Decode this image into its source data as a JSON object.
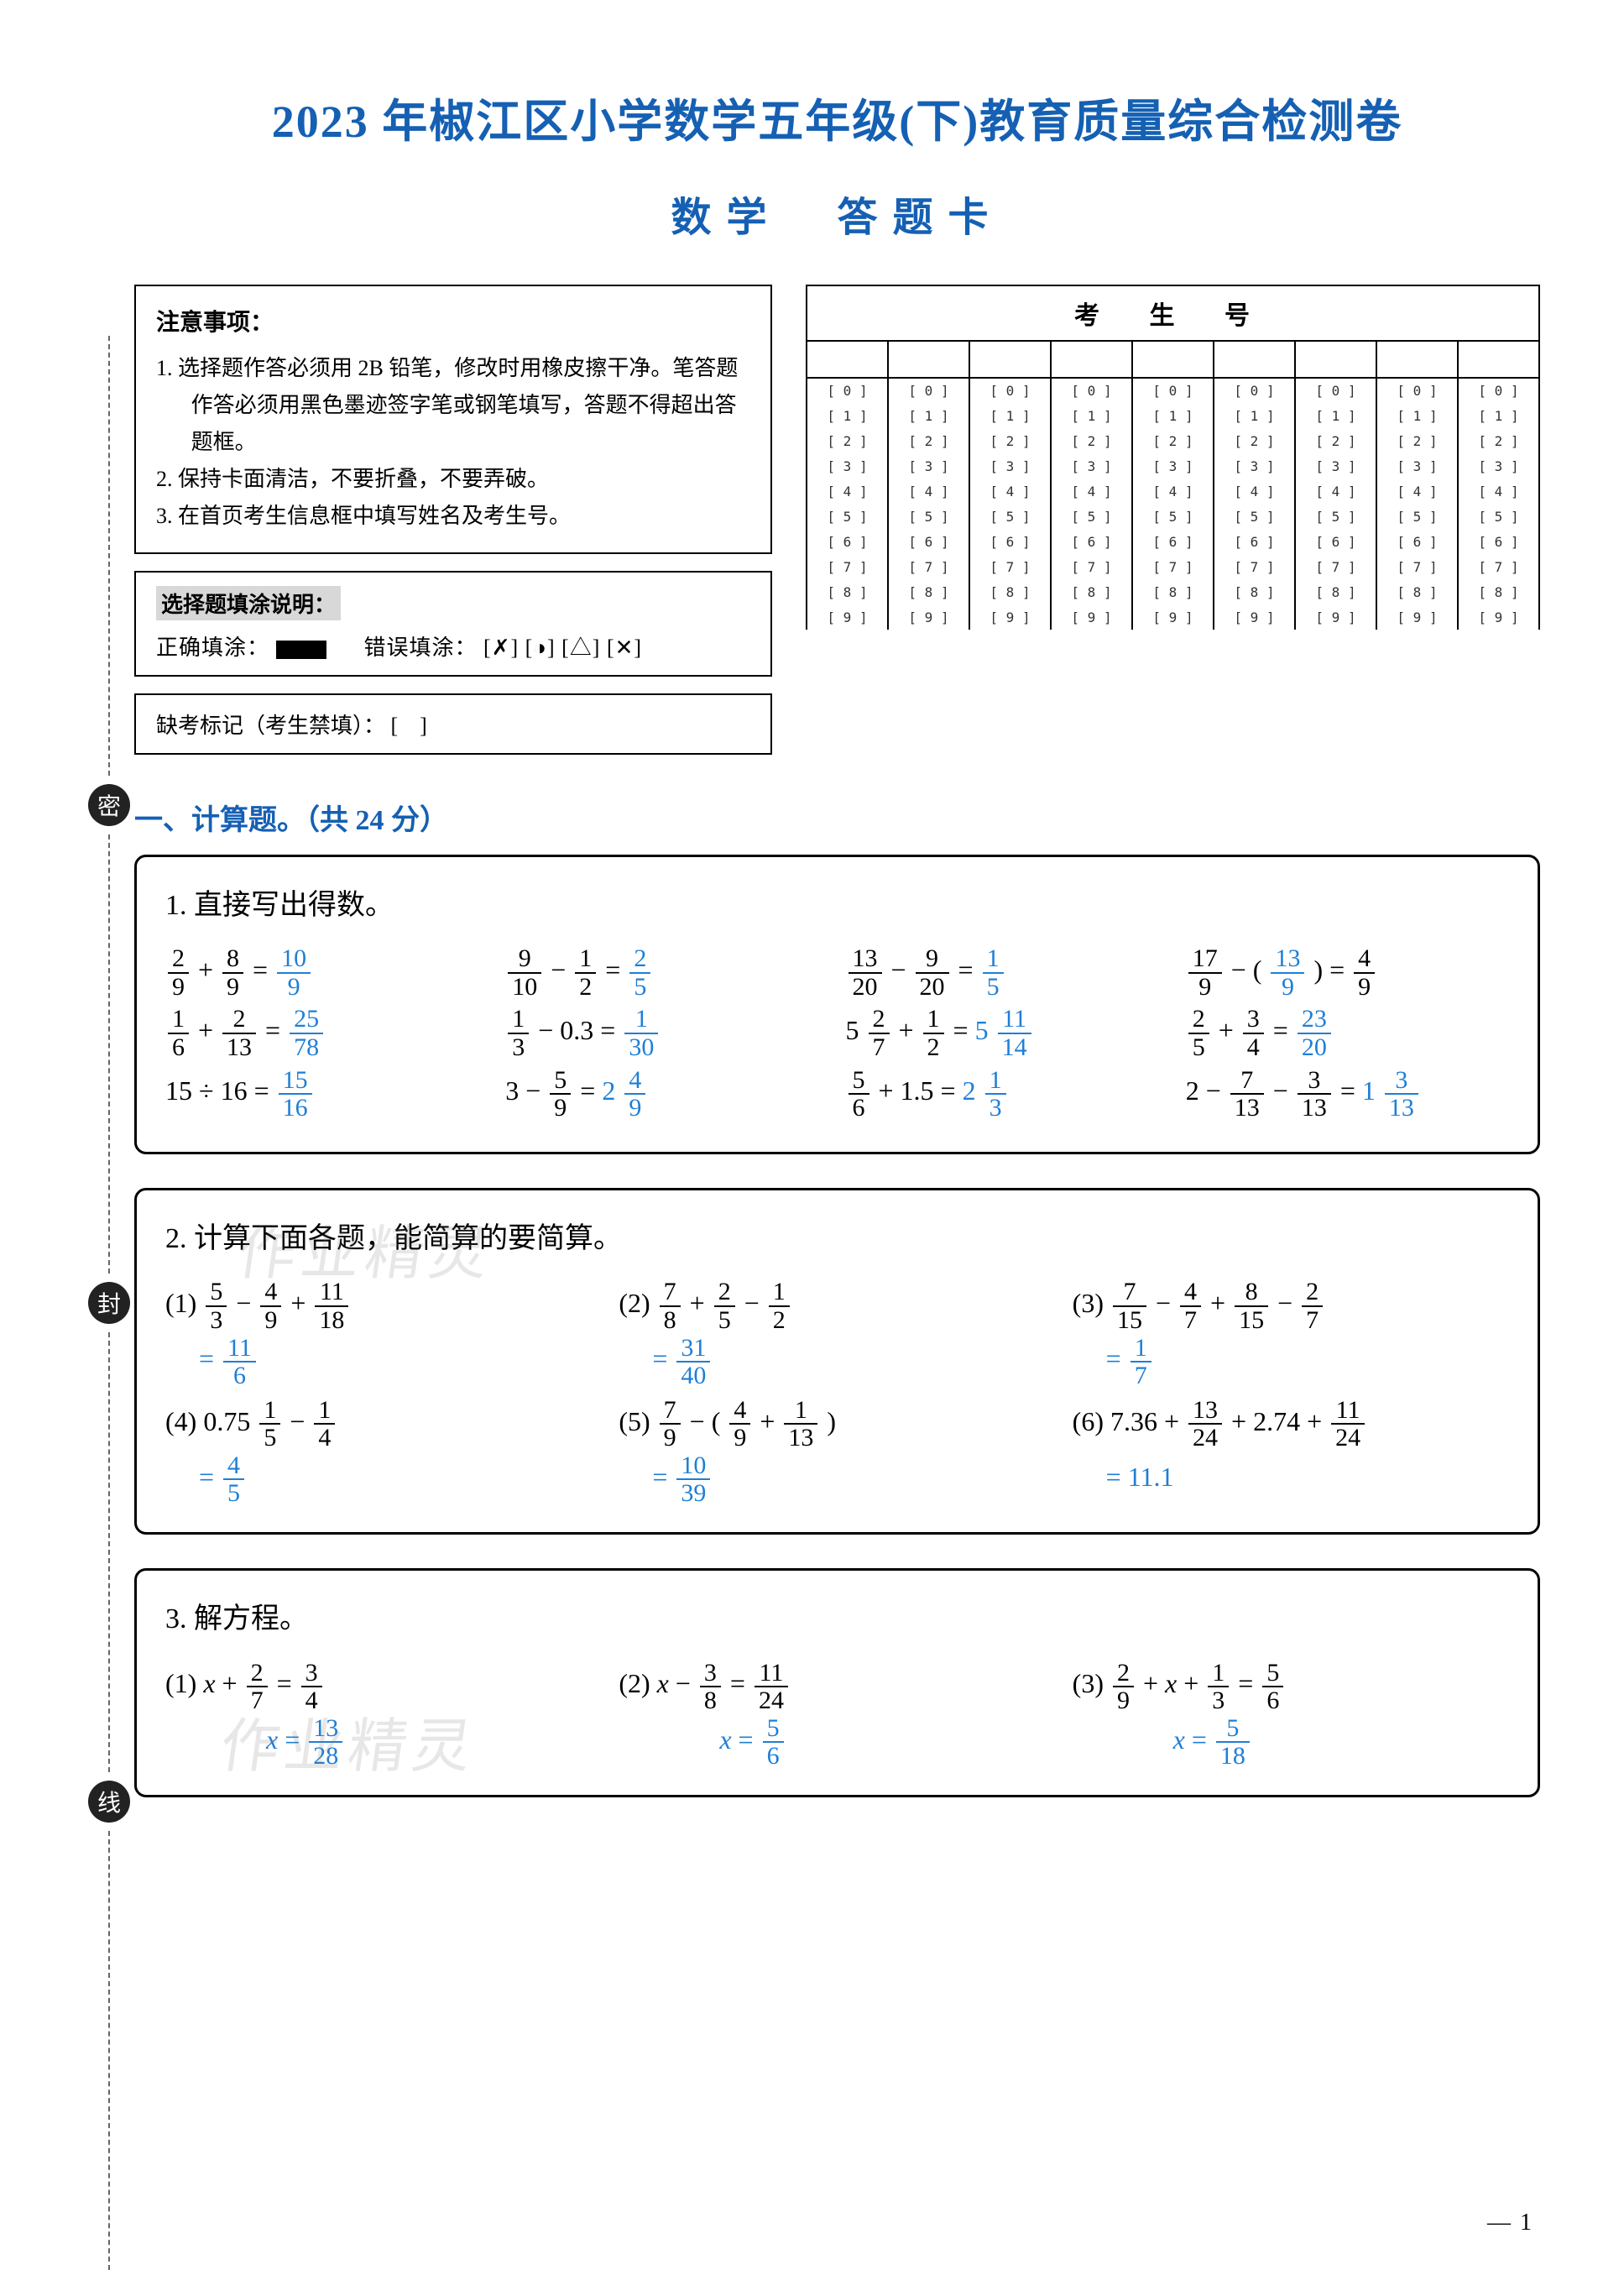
{
  "colors": {
    "heading_blue": "#1560b3",
    "answer_blue": "#1e7fd6",
    "text_black": "#000000",
    "border_black": "#000000",
    "page_bg": "#ffffff"
  },
  "title_main": "2023 年椒江区小学数学五年级(下)教育质量综合检测卷",
  "title_sub": "数学　答题卡",
  "notice": {
    "heading": "注意事项：",
    "items": [
      "1. 选择题作答必须用 2B 铅笔，修改时用橡皮擦干净。笔答题作答必须用黑色墨迹签字笔或钢笔填写，答题不得超出答题框。",
      "2. 保持卡面清洁，不要折叠，不要弄破。",
      "3. 在首页考生信息框中填写姓名及考生号。"
    ]
  },
  "fillguide": {
    "heading": "选择题填涂说明：",
    "correct_label": "正确填涂：",
    "wrong_label": "错误填涂：",
    "wrong_examples": "[✗] [◑] [△] [✕]"
  },
  "absent": {
    "label": "缺考标记（考生禁填）：",
    "box": "[　]"
  },
  "ksh": {
    "header": "考 生 号",
    "columns": 9,
    "digits": [
      "0",
      "1",
      "2",
      "3",
      "4",
      "5",
      "6",
      "7",
      "8",
      "9"
    ]
  },
  "fold_labels": [
    "密",
    "封",
    "线"
  ],
  "section1": {
    "heading": "一、计算题。",
    "points_label": "（共 24 分）"
  },
  "q1": {
    "title": "1.  直接写出得数。",
    "rows": [
      [
        {
          "lhs_a": "2",
          "lhs_b": "9",
          "op": "+",
          "rhs_a": "8",
          "rhs_b": "9",
          "ans_a": "10",
          "ans_b": "9",
          "type": "ff"
        },
        {
          "lhs_a": "9",
          "lhs_b": "10",
          "op": "−",
          "rhs_a": "1",
          "rhs_b": "2",
          "ans_a": "2",
          "ans_b": "5",
          "type": "ff"
        },
        {
          "lhs_a": "13",
          "lhs_b": "20",
          "op": "−",
          "rhs_a": "9",
          "rhs_b": "20",
          "ans_a": "1",
          "ans_b": "5",
          "type": "ff"
        },
        {
          "custom": "d1"
        }
      ],
      [
        {
          "lhs_a": "1",
          "lhs_b": "6",
          "op": "+",
          "rhs_a": "2",
          "rhs_b": "13",
          "ans_a": "25",
          "ans_b": "78",
          "type": "ff"
        },
        {
          "custom": "b2"
        },
        {
          "custom": "c2"
        },
        {
          "lhs_a": "2",
          "lhs_b": "5",
          "op": "+",
          "rhs_a": "3",
          "rhs_b": "4",
          "ans_a": "23",
          "ans_b": "20",
          "type": "ff"
        }
      ],
      [
        {
          "custom": "a3"
        },
        {
          "custom": "b3"
        },
        {
          "custom": "c3"
        },
        {
          "custom": "d3"
        }
      ]
    ],
    "d1_frac1": {
      "a": "17",
      "b": "9"
    },
    "d1_frac2": {
      "a": "13",
      "b": "9"
    },
    "d1_ans": {
      "a": "4",
      "b": "9"
    },
    "b2_lhs": {
      "a": "1",
      "b": "3"
    },
    "b2_rhs": "0.3",
    "b2_ans": {
      "a": "1",
      "b": "30"
    },
    "c2_whole": "5",
    "c2_f1": {
      "a": "2",
      "b": "7"
    },
    "c2_f2": {
      "a": "1",
      "b": "2"
    },
    "c2_ans_whole": "5",
    "c2_ans": {
      "a": "11",
      "b": "14"
    },
    "a3_lhs": "15 ÷ 16",
    "a3_ans": {
      "a": "15",
      "b": "16"
    },
    "b3_lhs": "3",
    "b3_f": {
      "a": "5",
      "b": "9"
    },
    "b3_ans_whole": "2",
    "b3_ans": {
      "a": "4",
      "b": "9"
    },
    "c3_f": {
      "a": "5",
      "b": "6"
    },
    "c3_rhs": "1.5",
    "c3_ans_whole": "2",
    "c3_ans": {
      "a": "1",
      "b": "3"
    },
    "d3_lhs": "2",
    "d3_f1": {
      "a": "7",
      "b": "13"
    },
    "d3_f2": {
      "a": "3",
      "b": "13"
    },
    "d3_ans_whole": "1",
    "d3_ans": {
      "a": "3",
      "b": "13"
    }
  },
  "q2": {
    "title": "2.  计算下面各题，能简算的要简算。",
    "items": [
      {
        "label": "(1)",
        "expr_frac": [
          [
            "5",
            "3"
          ],
          [
            "4",
            "9"
          ],
          [
            "11",
            "18"
          ]
        ],
        "ops": [
          "−",
          "+"
        ],
        "ans": {
          "a": "11",
          "b": "6"
        }
      },
      {
        "label": "(2)",
        "expr_frac": [
          [
            "7",
            "8"
          ],
          [
            "2",
            "5"
          ],
          [
            "1",
            "2"
          ]
        ],
        "ops": [
          "+",
          "−"
        ],
        "ans": {
          "a": "31",
          "b": "40"
        }
      },
      {
        "label": "(3)",
        "expr_frac": [
          [
            "7",
            "15"
          ],
          [
            "4",
            "7"
          ],
          [
            "8",
            "15"
          ],
          [
            "2",
            "7"
          ]
        ],
        "ops": [
          "−",
          "+",
          "−"
        ],
        "ans": {
          "a": "1",
          "b": "7"
        }
      },
      {
        "label": "(4)",
        "pre": "0.75",
        "expr_frac": [
          [
            "1",
            "5"
          ],
          [
            "1",
            "4"
          ]
        ],
        "ops": [
          "−",
          "+"
        ],
        "ans": {
          "a": "4",
          "b": "5"
        }
      },
      {
        "label": "(5)",
        "custom": "paren",
        "f1": {
          "a": "7",
          "b": "9"
        },
        "f2": {
          "a": "4",
          "b": "9"
        },
        "f3": {
          "a": "1",
          "b": "13"
        },
        "ans": {
          "a": "10",
          "b": "39"
        }
      },
      {
        "label": "(6)",
        "pre": "7.36",
        "expr_frac": [
          [
            "13",
            "24"
          ]
        ],
        "mid": "+ 2.74",
        "expr_frac2": [
          [
            "11",
            "24"
          ]
        ],
        "ans_text": "11.1"
      }
    ]
  },
  "q3": {
    "title": "3.  解方程。",
    "items": [
      {
        "label": "(1)",
        "eq_lhs": "x +",
        "f1": {
          "a": "2",
          "b": "7"
        },
        "eq_rhs": {
          "a": "3",
          "b": "4"
        },
        "ans": {
          "a": "13",
          "b": "28"
        }
      },
      {
        "label": "(2)",
        "eq_lhs": "x −",
        "f1": {
          "a": "3",
          "b": "8"
        },
        "eq_rhs": {
          "a": "11",
          "b": "24"
        },
        "ans": {
          "a": "5",
          "b": "6"
        }
      },
      {
        "label": "(3)",
        "pre_f": {
          "a": "2",
          "b": "9"
        },
        "mid": "+ x +",
        "f1": {
          "a": "1",
          "b": "3"
        },
        "eq_rhs": {
          "a": "5",
          "b": "6"
        },
        "ans": {
          "a": "5",
          "b": "18"
        }
      }
    ]
  },
  "watermark_text": "作业精灵",
  "page_number": "1"
}
